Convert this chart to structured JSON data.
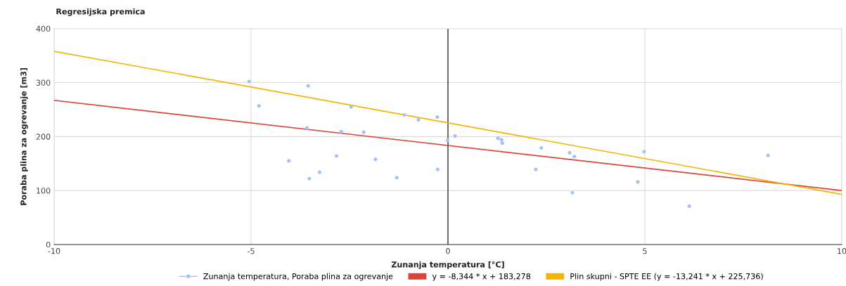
{
  "chart_data": {
    "type": "scatter",
    "title": "Regresijska premica",
    "xlabel": "Zunanja temperatura [°C]",
    "ylabel": "Poraba plina za ogrevanje [m3]",
    "xlim": [
      -10,
      10
    ],
    "xticks": [
      -10,
      -5,
      0,
      5,
      10
    ],
    "ylim": [
      0,
      400
    ],
    "yticks": [
      0,
      100,
      200,
      300,
      400
    ],
    "grid": true,
    "legend": "bottom",
    "ref_lines": [
      {
        "axis": "x",
        "value": 0,
        "color": "#333333"
      }
    ],
    "series": [
      {
        "name": "Zunanja temperatura, Poraba plina za ogrevanje",
        "marker": "circle",
        "color": "#a4c2f4",
        "x": [
          -5.05,
          -4.8,
          -3.55,
          -3.58,
          -4.04,
          -3.52,
          -3.26,
          -2.83,
          -2.71,
          -2.46,
          -2.14,
          -1.84,
          -1.3,
          -1.11,
          -0.75,
          -0.27,
          -0.26,
          -0.01,
          0.18,
          1.27,
          1.36,
          1.38,
          2.37,
          2.23,
          3.09,
          3.21,
          3.16,
          4.98,
          4.82,
          6.13,
          8.13
        ],
        "values": [
          302,
          257,
          294,
          216,
          155,
          122,
          134,
          164,
          209,
          255,
          208,
          158,
          124,
          240,
          231,
          236,
          139,
          193,
          201,
          197,
          194,
          188,
          179,
          139,
          170,
          163,
          96,
          172,
          116,
          71,
          165
        ]
      },
      {
        "name": "y = -8,344 * x + 183,278",
        "type": "line",
        "color": "#db4437",
        "x": [
          -10,
          10
        ],
        "values": [
          267,
          100
        ]
      },
      {
        "name": "Plin skupni - SPTE EE (y = -13,241 * x + 225,736)",
        "type": "line",
        "color": "#f4b400",
        "x": [
          -10,
          10
        ],
        "values": [
          358,
          93
        ]
      }
    ]
  }
}
